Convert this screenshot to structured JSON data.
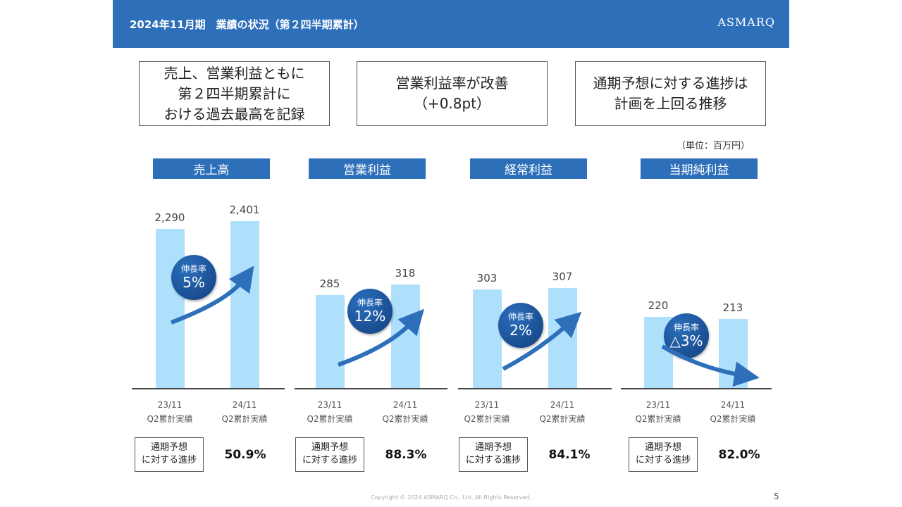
{
  "header": {
    "title": "2024年11月期　業績の状況（第２四半期累計）",
    "logo": "ASMARQ"
  },
  "highlights": [
    "売上、営業利益ともに\n第２四半期累計に\nおける過去最高を記録",
    "営業利益率が改善\n（+0.8pt）",
    "通期予想に対する進捗は\n計画を上回る推移"
  ],
  "unit": "（単位：百万円）",
  "chart_data": [
    {
      "type": "bar",
      "title": "売上高",
      "categories": [
        "23/11\nQ2累計実績",
        "24/11\nQ2累計実績"
      ],
      "values": [
        2290,
        2401
      ],
      "value_labels": [
        "2,290",
        "2,401"
      ],
      "growth_label": "伸長率",
      "growth": "5%",
      "progress_label": "通期予想\nに対する進捗",
      "progress": "50.9%"
    },
    {
      "type": "bar",
      "title": "営業利益",
      "categories": [
        "23/11\nQ2累計実績",
        "24/11\nQ2累計実績"
      ],
      "values": [
        285,
        318
      ],
      "value_labels": [
        "285",
        "318"
      ],
      "growth_label": "伸長率",
      "growth": "12%",
      "progress_label": "通期予想\nに対する進捗",
      "progress": "88.3%"
    },
    {
      "type": "bar",
      "title": "経常利益",
      "categories": [
        "23/11\nQ2累計実績",
        "24/11\nQ2累計実績"
      ],
      "values": [
        303,
        307
      ],
      "value_labels": [
        "303",
        "307"
      ],
      "growth_label": "伸長率",
      "growth": "2%",
      "progress_label": "通期予想\nに対する進捗",
      "progress": "84.1%"
    },
    {
      "type": "bar",
      "title": "当期純利益",
      "categories": [
        "23/11\nQ2累計実績",
        "24/11\nQ2累計実績"
      ],
      "values": [
        220,
        213
      ],
      "value_labels": [
        "220",
        "213"
      ],
      "growth_label": "伸長率",
      "growth": "△3%",
      "progress_label": "通期予想\nに対する進捗",
      "progress": "82.0%"
    }
  ],
  "colors": {
    "header": "#2e6fba",
    "bar": "#aee0fb",
    "bubble": "#1a4f94"
  },
  "footer": {
    "copyright": "Copyright © 2024 ASMARQ Co., Ltd. All Rights Reserved.",
    "page": "5"
  }
}
